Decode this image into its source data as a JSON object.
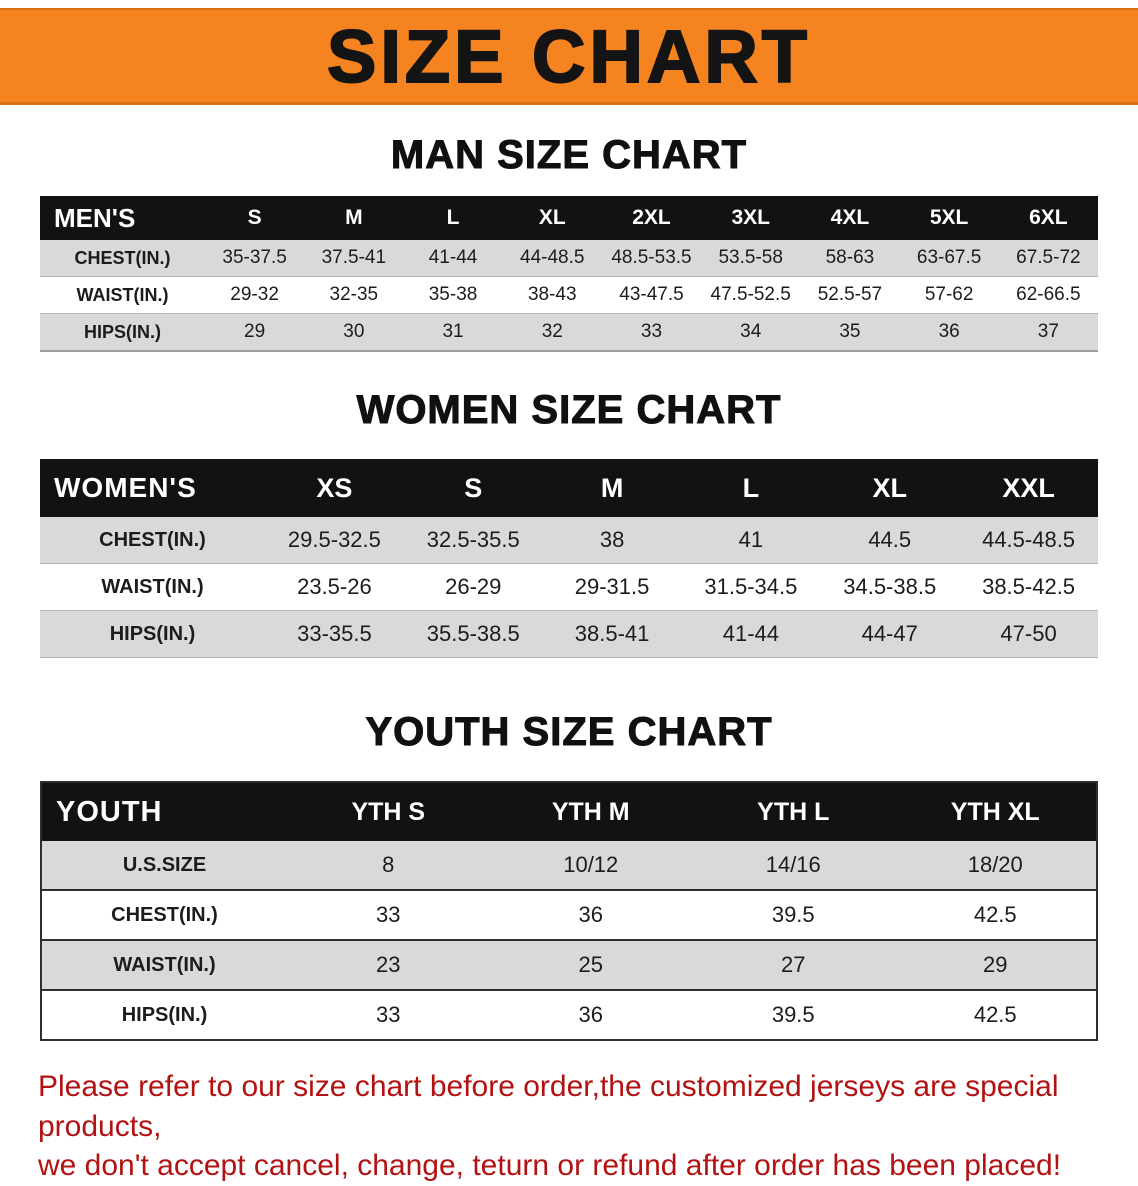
{
  "banner": {
    "title": "SIZE CHART",
    "bg_color": "#f5831f",
    "text_color": "#141414"
  },
  "chart_data": [
    {
      "type": "table",
      "title": "MAN SIZE CHART",
      "corner_label": "MEN'S",
      "columns": [
        "S",
        "M",
        "L",
        "XL",
        "2XL",
        "3XL",
        "4XL",
        "5XL",
        "6XL"
      ],
      "rows": [
        {
          "label": "CHEST(IN.)",
          "values": [
            "35-37.5",
            "37.5-41",
            "41-44",
            "44-48.5",
            "48.5-53.5",
            "53.5-58",
            "58-63",
            "63-67.5",
            "67.5-72"
          ]
        },
        {
          "label": "WAIST(IN.)",
          "values": [
            "29-32",
            "32-35",
            "35-38",
            "38-43",
            "43-47.5",
            "47.5-52.5",
            "52.5-57",
            "57-62",
            "62-66.5"
          ]
        },
        {
          "label": "HIPS(IN.)",
          "values": [
            "29",
            "30",
            "31",
            "32",
            "33",
            "34",
            "35",
            "36",
            "37"
          ]
        }
      ]
    },
    {
      "type": "table",
      "title": "WOMEN SIZE CHART",
      "corner_label": "WOMEN'S",
      "columns": [
        "XS",
        "S",
        "M",
        "L",
        "XL",
        "XXL"
      ],
      "rows": [
        {
          "label": "CHEST(IN.)",
          "values": [
            "29.5-32.5",
            "32.5-35.5",
            "38",
            "41",
            "44.5",
            "44.5-48.5"
          ]
        },
        {
          "label": "WAIST(IN.)",
          "values": [
            "23.5-26",
            "26-29",
            "29-31.5",
            "31.5-34.5",
            "34.5-38.5",
            "38.5-42.5"
          ]
        },
        {
          "label": "HIPS(IN.)",
          "values": [
            "33-35.5",
            "35.5-38.5",
            "38.5-41",
            "41-44",
            "44-47",
            "47-50"
          ]
        }
      ]
    },
    {
      "type": "table",
      "title": "YOUTH SIZE CHART",
      "corner_label": "YOUTH",
      "columns": [
        "YTH S",
        "YTH M",
        "YTH L",
        "YTH XL"
      ],
      "rows": [
        {
          "label": "U.S.SIZE",
          "values": [
            "8",
            "10/12",
            "14/16",
            "18/20"
          ]
        },
        {
          "label": "CHEST(IN.)",
          "values": [
            "33",
            "36",
            "39.5",
            "42.5"
          ]
        },
        {
          "label": "WAIST(IN.)",
          "values": [
            "23",
            "25",
            "27",
            "29"
          ]
        },
        {
          "label": "HIPS(IN.)",
          "values": [
            "33",
            "36",
            "39.5",
            "42.5"
          ]
        }
      ]
    }
  ],
  "footer": {
    "lines": [
      "Please refer to our size chart before order,the customized jerseys are special products,",
      "we don't accept cancel, change, teturn or refund after order has been placed!"
    ],
    "text_color": "#b31212"
  },
  "colors": {
    "banner_bg": "#f5831f",
    "table_header_bg": "#121212",
    "shaded_row_bg": "#d9d9d9",
    "footer_text": "#b31212"
  }
}
